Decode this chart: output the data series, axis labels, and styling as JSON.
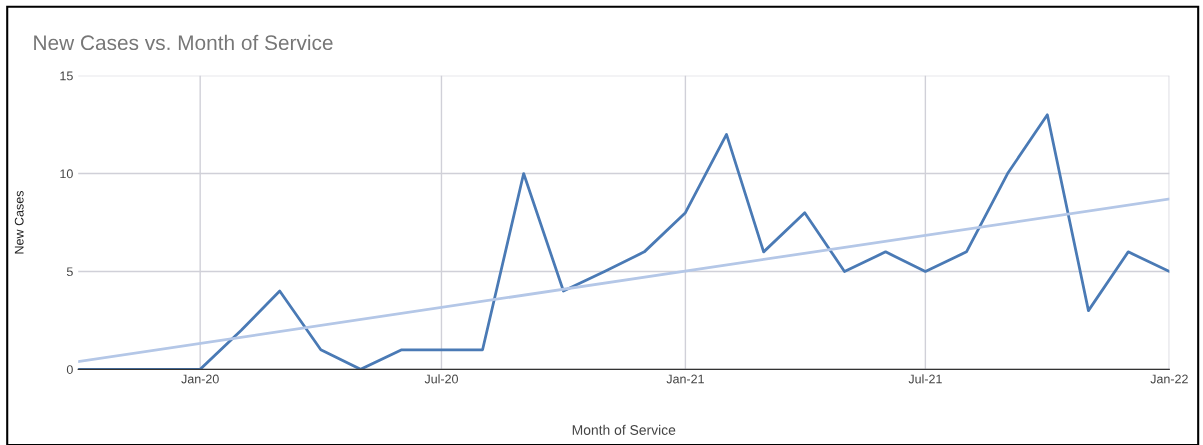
{
  "chart_data": {
    "type": "line",
    "title": "New Cases vs. Month of Service",
    "xlabel": "Month of Service",
    "ylabel": "New Cases",
    "x": [
      "2019-10",
      "2019-11",
      "2019-12",
      "2020-01",
      "2020-02",
      "2020-03",
      "2020-04",
      "2020-05",
      "2020-06",
      "2020-07",
      "2020-08",
      "2020-09",
      "2020-10",
      "2020-11",
      "2020-12",
      "2021-01",
      "2021-02",
      "2021-03",
      "2021-04",
      "2021-05",
      "2021-06",
      "2021-07",
      "2021-08",
      "2021-09",
      "2021-10",
      "2021-11",
      "2021-12",
      "2022-01"
    ],
    "series": [
      {
        "color": "#4a7ab5",
        "values": [
          0,
          0,
          0,
          0,
          2,
          4,
          1,
          0,
          1,
          1,
          1,
          10,
          4,
          5,
          6,
          8,
          12,
          6,
          8,
          5,
          6,
          5,
          6,
          10,
          13,
          3,
          6,
          5
        ]
      },
      {
        "type": "line",
        "color": "#b4c7e7",
        "x": [
          "2019-10",
          "2022-01"
        ],
        "values": [
          0.4,
          8.7
        ]
      }
    ],
    "xlim": [
      "2019-10",
      "2022-01"
    ],
    "xticks": [
      {
        "value": "2020-01",
        "label": "Jan-20"
      },
      {
        "value": "2020-07",
        "label": "Jul-20"
      },
      {
        "value": "2021-01",
        "label": "Jan-21"
      },
      {
        "value": "2021-07",
        "label": "Jul-21"
      },
      {
        "value": "2022-01",
        "label": "Jan-22"
      }
    ],
    "ylim": [
      0,
      15
    ],
    "yticks": [
      0,
      5,
      10,
      15
    ],
    "grid": true
  }
}
